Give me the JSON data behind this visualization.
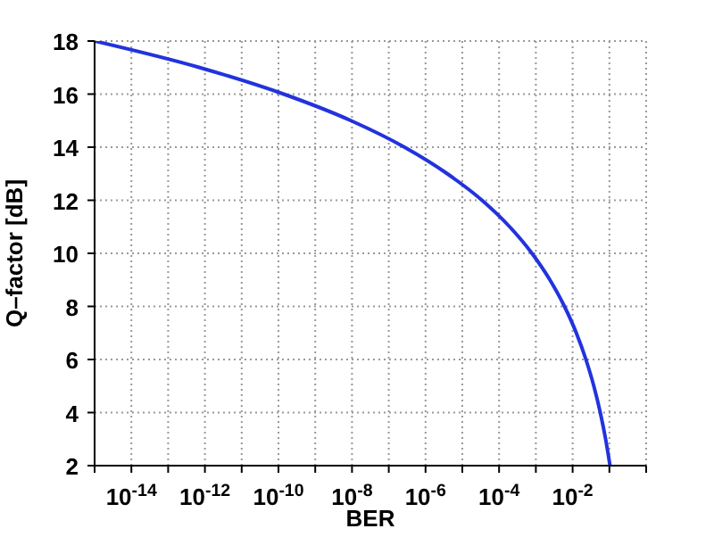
{
  "chart_data": {
    "type": "line",
    "xlabel": "BER",
    "ylabel": "Q–factor [dB]",
    "log": "x",
    "grid": true,
    "marker": "none",
    "line_style": "solid",
    "x": [
      1e-15,
      7.2e-13,
      1.39e-10,
      9.4e-09,
      2.68e-07,
      3.9e-06,
      3.43e-05,
      0.000194,
      0.000783,
      0.00241,
      0.006,
      0.0126,
      0.023,
      0.0377,
      0.0565,
      0.0789,
      0.104
    ],
    "series": [
      {
        "color": "#2233dd",
        "values": [
          18,
          17,
          16,
          15,
          14,
          13,
          12,
          11,
          10,
          9,
          8,
          7,
          6,
          5,
          4,
          3,
          2
        ]
      }
    ],
    "xlim": [
      1e-15,
      1
    ],
    "xticks": [
      {
        "value": 1e-15,
        "label": null
      },
      {
        "value": 1e-14,
        "label": "10$^{-14}$"
      },
      {
        "value": 1e-13,
        "label": null
      },
      {
        "value": 1e-12,
        "label": "10$^{-12}$"
      },
      {
        "value": 1e-11,
        "label": null
      },
      {
        "value": 1e-10,
        "label": "10$^{-10}$"
      },
      {
        "value": 1e-09,
        "label": null
      },
      {
        "value": 1e-08,
        "label": "10$^{-8}$"
      },
      {
        "value": 1e-07,
        "label": null
      },
      {
        "value": 1e-06,
        "label": "10$^{-6}$"
      },
      {
        "value": 1e-05,
        "label": null
      },
      {
        "value": 0.0001,
        "label": "10$^{-4}$"
      },
      {
        "value": 0.001,
        "label": null
      },
      {
        "value": 0.01,
        "label": "10$^{-2}$"
      },
      {
        "value": 0.1,
        "label": null
      },
      {
        "value": 1,
        "label": null
      }
    ],
    "ylim": [
      2,
      18
    ],
    "yticks": [
      2,
      4,
      6,
      8,
      10,
      12,
      14,
      16,
      18
    ]
  }
}
